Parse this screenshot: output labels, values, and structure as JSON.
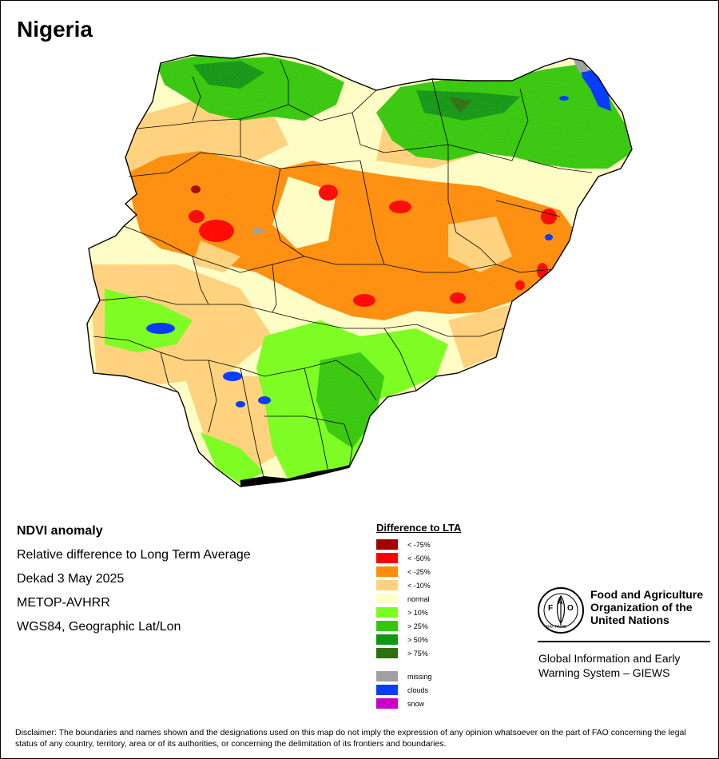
{
  "title": "Nigeria",
  "map_info": {
    "heading": "NDVI anomaly",
    "line1": "Relative difference to Long Term Average",
    "line2": "Dekad 3 May 2025",
    "line3": "METOP-AVHRR",
    "line4": "WGS84, Geographic Lat/Lon"
  },
  "legend": {
    "title": "Difference to LTA",
    "items": [
      {
        "label": "< -75%",
        "color": "#a50000"
      },
      {
        "label": "< -50%",
        "color": "#ff0000"
      },
      {
        "label": "< -25%",
        "color": "#ff8c0a"
      },
      {
        "label": "< -10%",
        "color": "#ffd27d"
      },
      {
        "label": "normal",
        "color": "#ffffc8"
      },
      {
        "label": "> 10%",
        "color": "#78ff1e"
      },
      {
        "label": "> 25%",
        "color": "#32c80a"
      },
      {
        "label": "> 50%",
        "color": "#0f9614"
      },
      {
        "label": "> 75%",
        "color": "#2d6e0f"
      }
    ],
    "extra": [
      {
        "label": "missing",
        "color": "#a0a0a0"
      },
      {
        "label": "clouds",
        "color": "#0a3cff"
      },
      {
        "label": "snow",
        "color": "#c800c8"
      }
    ]
  },
  "org": {
    "logo_text": "FAO",
    "logo_motto": "FIAT PANIS",
    "name_line1": "Food and Agriculture",
    "name_line2": "Organization of the",
    "name_line3": "United Nations",
    "system_line1": "Global Information and Early",
    "system_line2": "Warning System – GIEWS"
  },
  "disclaimer": "Disclaimer: The boundaries and names shown and the designations used on this map do not imply the expression of any opinion whatsoever on the part of FAO concerning the legal status of any country, territory, area or of its authorities, or concerning the delimitation of its frontiers and boundaries."
}
